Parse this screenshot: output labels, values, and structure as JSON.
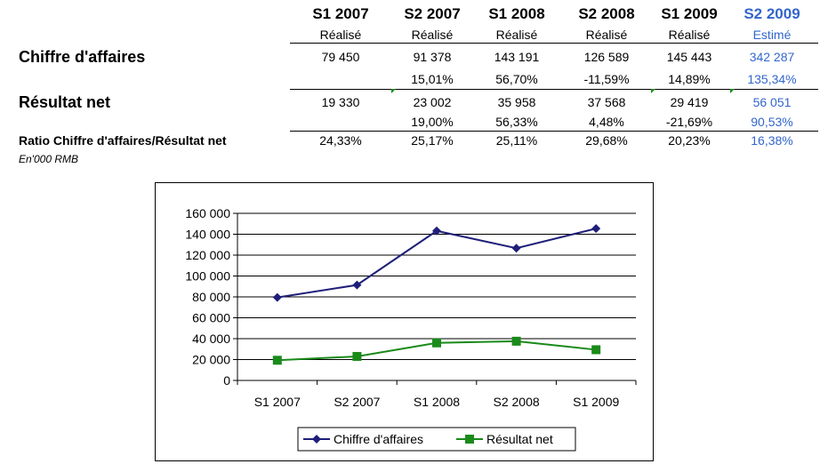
{
  "table": {
    "columns": [
      {
        "period": "S1 2007",
        "status": "Réalisé",
        "estimate": false
      },
      {
        "period": "S2 2007",
        "status": "Réalisé",
        "estimate": false
      },
      {
        "period": "S1 2008",
        "status": "Réalisé",
        "estimate": false
      },
      {
        "period": "S2 2008",
        "status": "Réalisé",
        "estimate": false
      },
      {
        "period": "S1 2009",
        "status": "Réalisé",
        "estimate": false
      },
      {
        "period": "S2 2009",
        "status": "Estimé",
        "estimate": true
      }
    ],
    "revenue_label": "Chiffre d'affaires",
    "revenue_values": [
      "79 450",
      "91 378",
      "143 191",
      "126 589",
      "145 443",
      "342 287"
    ],
    "revenue_growth": [
      "",
      "15,01%",
      "56,70%",
      "-11,59%",
      "14,89%",
      "135,34%"
    ],
    "net_label": "Résultat net",
    "net_values": [
      "19 330",
      "23 002",
      "35 958",
      "37 568",
      "29 419",
      "56 051"
    ],
    "net_growth": [
      "",
      "19,00%",
      "56,33%",
      "4,48%",
      "-21,69%",
      "90,53%"
    ],
    "ratio_label": "Ratio Chiffre d'affaires/Résultat net",
    "ratio_values": [
      "24,33%",
      "25,17%",
      "25,11%",
      "29,68%",
      "20,23%",
      "16,38%"
    ],
    "unit_note": "En'000 RMB"
  },
  "colors": {
    "estimate_text": "#3366cc",
    "revenue_series": "#1f1f7a",
    "net_series": "#1a8a1a"
  },
  "chart_data": {
    "type": "line",
    "x": [
      "S1 2007",
      "S2 2007",
      "S1 2008",
      "S2 2008",
      "S1 2009"
    ],
    "series": [
      {
        "name": "Chiffre d'affaires",
        "values": [
          79450,
          91378,
          143191,
          126589,
          145443
        ],
        "marker": "diamond"
      },
      {
        "name": "Résultat net",
        "values": [
          19330,
          23002,
          35958,
          37568,
          29419
        ],
        "marker": "square"
      }
    ],
    "ylim": [
      0,
      160000
    ],
    "ytick_labels": [
      "0",
      "20 000",
      "40 000",
      "60 000",
      "80 000",
      "100 000",
      "120 000",
      "140 000",
      "160 000"
    ],
    "grid": true,
    "legend_position": "bottom"
  }
}
